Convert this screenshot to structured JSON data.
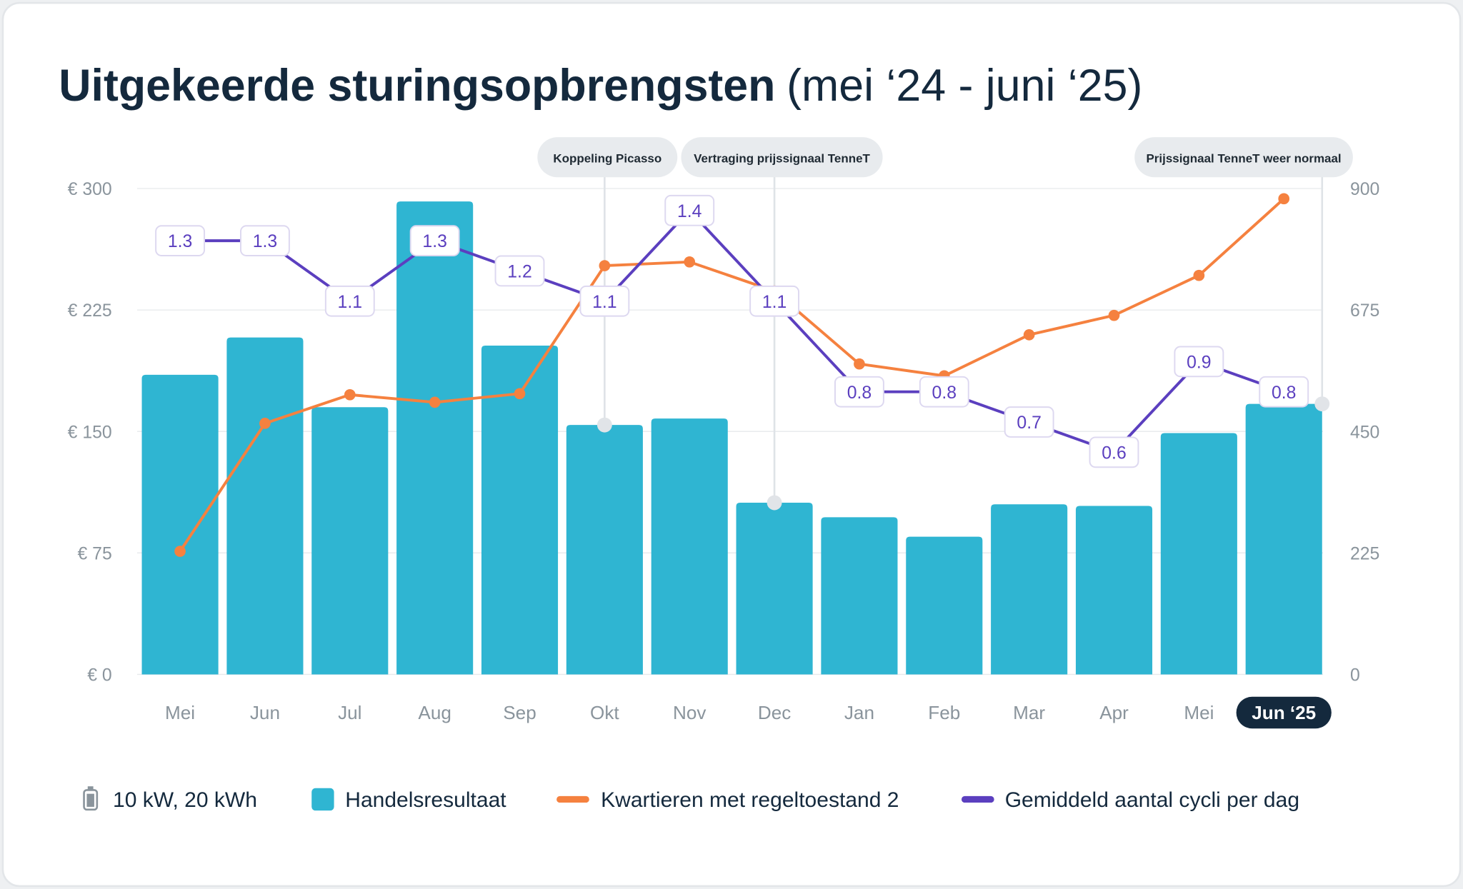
{
  "title": {
    "bold": "Uitgekeerde sturingsopbrengsten",
    "regular": "(mei ‘24 - juni ‘25)"
  },
  "colors": {
    "bars": "#2fb5d2",
    "orange": "#f5813f",
    "purple": "#5b3fbf",
    "dark": "#14293d",
    "annotation_bg": "#e8ebee"
  },
  "chart_data": {
    "type": "bar+line",
    "categories": [
      "Mei",
      "Jun",
      "Jul",
      "Aug",
      "Sep",
      "Okt",
      "Nov",
      "Dec",
      "Jan",
      "Feb",
      "Mar",
      "Apr",
      "Mei",
      "Jun ‘25"
    ],
    "highlighted_category": "Jun ‘25",
    "left_axis": {
      "ticks": [
        "€ 0",
        "€ 75",
        "€ 150",
        "€ 225",
        "€ 300"
      ],
      "range": [
        0,
        300
      ]
    },
    "right_axis": {
      "ticks": [
        "0",
        "225",
        "450",
        "675",
        "900"
      ],
      "range": [
        0,
        900
      ]
    },
    "grid": true,
    "legend_position": "bottom",
    "series": [
      {
        "name": "Handelsresultaat",
        "kind": "bar",
        "axis": "left",
        "values": [
          185,
          208,
          165,
          292,
          203,
          154,
          158,
          106,
          97,
          85,
          105,
          104,
          149,
          167
        ]
      },
      {
        "name": "Kwartieren met regeltoestand 2",
        "kind": "line",
        "axis": "right",
        "values": [
          228,
          465,
          518,
          504,
          520,
          757,
          764,
          710,
          575,
          553,
          629,
          665,
          739,
          881
        ]
      },
      {
        "name": "Gemiddeld aantal cycli per dag",
        "kind": "line",
        "axis": "hidden",
        "values": [
          1.3,
          1.3,
          1.1,
          1.3,
          1.2,
          1.1,
          1.4,
          1.1,
          0.8,
          0.8,
          0.7,
          0.6,
          0.9,
          0.8
        ],
        "labels": [
          "1.3",
          "1.3",
          "1.1",
          "1.3",
          "1.2",
          "1.1",
          "1.4",
          "1.1",
          "0.8",
          "0.8",
          "0.7",
          "0.6",
          "0.9",
          "0.8"
        ]
      }
    ],
    "annotations": [
      {
        "label": "Koppeling Picasso",
        "category_index": 5
      },
      {
        "label": "Vertraging prijssignaal TenneT",
        "category_index": 7
      },
      {
        "label": "Prijssignaal TenneT weer normaal",
        "category_index": 13.45
      }
    ]
  },
  "legend": {
    "battery": "10 kW, 20 kWh",
    "items": [
      "Handelsresultaat",
      "Kwartieren met regeltoestand 2",
      "Gemiddeld aantal cycli per dag"
    ]
  }
}
